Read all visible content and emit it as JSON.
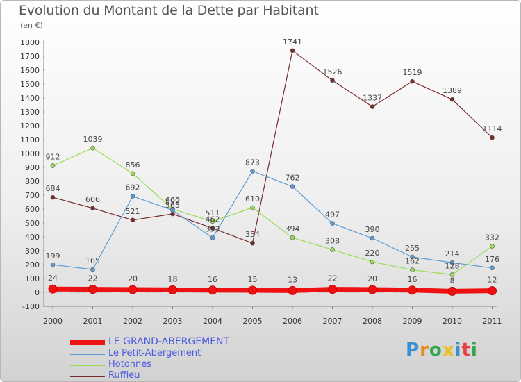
{
  "title": "Evolution du Montant de la Dette par Habitant",
  "subtitle": "(en €)",
  "logo": {
    "text": "Proxiti",
    "colors": [
      "#3a8fd0",
      "#e88a1c",
      "#2fa84a",
      "#e8c21c",
      "#3a8fd0",
      "#e84040",
      "#2fa84a"
    ]
  },
  "chart_data": {
    "type": "line",
    "x": [
      "2000",
      "2001",
      "2002",
      "2003",
      "2004",
      "2005",
      "2006",
      "2007",
      "2008",
      "2009",
      "2010",
      "2011"
    ],
    "ylim": [
      -100,
      1800
    ],
    "yticks": [
      -100,
      0,
      100,
      200,
      300,
      400,
      500,
      600,
      700,
      800,
      900,
      1000,
      1100,
      1200,
      1300,
      1400,
      1500,
      1600,
      1700,
      1800
    ],
    "grid": false,
    "legend_position": "bottom-left",
    "series": [
      {
        "name": "LE GRAND-ABERGEMENT",
        "color": "#ee1111",
        "values": [
          24,
          22,
          20,
          18,
          16,
          15,
          13,
          22,
          20,
          16,
          8,
          12
        ],
        "labels": [
          "24",
          "22",
          "20",
          "18",
          "16",
          "15",
          "13",
          "22",
          "20",
          "16",
          "8",
          "12"
        ]
      },
      {
        "name": "Le Petit-Abergement",
        "color": "#5b9bd5",
        "values": [
          199,
          165,
          692,
          592,
          393,
          873,
          762,
          497,
          390,
          255,
          214,
          176
        ],
        "labels": [
          "199",
          "165",
          "692",
          "592",
          "393",
          "873",
          "762",
          "497",
          "390",
          "255",
          "214",
          "176"
        ]
      },
      {
        "name": "Hotonnes",
        "color": "#99dd55",
        "values": [
          912,
          1039,
          856,
          600,
          511,
          610,
          394,
          308,
          220,
          162,
          128,
          332
        ],
        "labels": [
          "912",
          "1039",
          "856",
          "600",
          "511",
          "610",
          "394",
          "308",
          "220",
          "162",
          "128",
          "332"
        ]
      },
      {
        "name": "Ruffieu",
        "color": "#7a2a2a",
        "values": [
          684,
          606,
          521,
          565,
          462,
          354,
          1741,
          1526,
          1337,
          1519,
          1389,
          1114
        ],
        "labels": [
          "684",
          "606",
          "521",
          "565",
          "462",
          "354",
          "1741",
          "1526",
          "1337",
          "1519",
          "1389",
          "1114"
        ]
      }
    ]
  }
}
